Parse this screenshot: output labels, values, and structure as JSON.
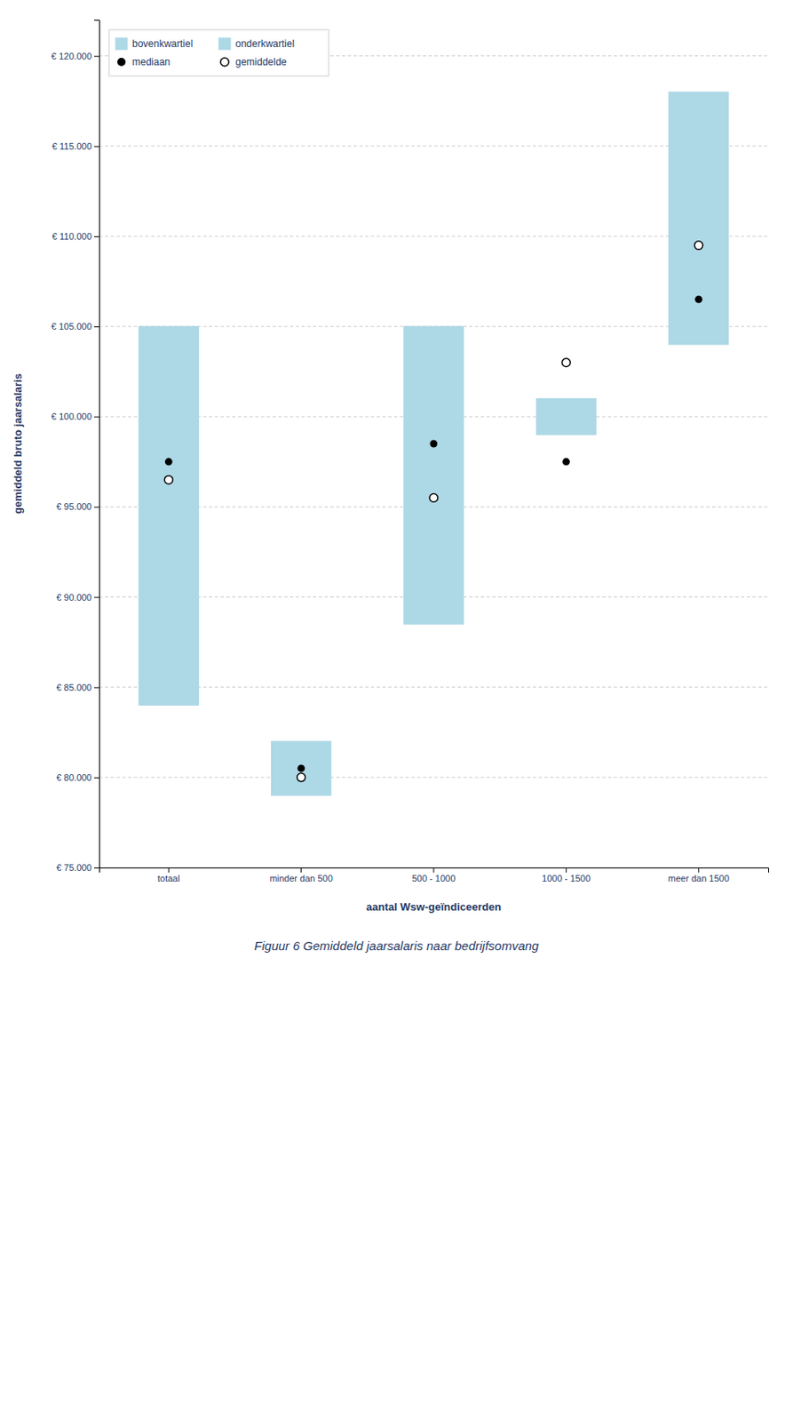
{
  "chart_data": {
    "type": "bar",
    "title": "Figuur 6 Gemiddeld jaarsalaris naar bedrijfsomvang",
    "xlabel": "aantal Wsw-geïndiceerden",
    "ylabel": "gemiddeld bruto jaarsalaris",
    "categories": [
      "totaal",
      "minder dan 500",
      "500 - 1000",
      "1000 - 1500",
      "meer dan 1500"
    ],
    "series": [
      {
        "name": "bovenkwartiel",
        "type": "bar",
        "color": "#ADD8E6",
        "values": [
          105000,
          82000,
          105000,
          101000,
          118000
        ]
      },
      {
        "name": "mediaan",
        "type": "scatter",
        "marker": "circle",
        "color": "#000000",
        "values": [
          97500,
          80500,
          98500,
          97500,
          106500
        ]
      },
      {
        "name": "onderkwartiel",
        "type": "bar",
        "color": "#ADD8E6",
        "values": [
          84000,
          79000,
          88500,
          99000,
          104000
        ]
      },
      {
        "name": "gemiddelde",
        "type": "scatter",
        "marker": "open_circle",
        "color": "#000000",
        "values": [
          96500,
          80000,
          95500,
          103000,
          109500
        ]
      }
    ],
    "ylim": [
      75000,
      122000
    ],
    "yticks": [
      {
        "value": 75000,
        "label": "€ 75.000"
      },
      {
        "value": 80000,
        "label": "€ 80.000"
      },
      {
        "value": 85000,
        "label": "€ 85.000"
      },
      {
        "value": 90000,
        "label": "€ 90.000"
      },
      {
        "value": 95000,
        "label": "€ 95.000"
      },
      {
        "value": 100000,
        "label": "€ 100.000"
      },
      {
        "value": 105000,
        "label": "€ 105.000"
      },
      {
        "value": 110000,
        "label": "€ 110.000"
      },
      {
        "value": 115000,
        "label": "€ 115.000"
      },
      {
        "value": 120000,
        "label": "€ 120.000"
      }
    ],
    "grid": true,
    "legend": "upper left"
  }
}
